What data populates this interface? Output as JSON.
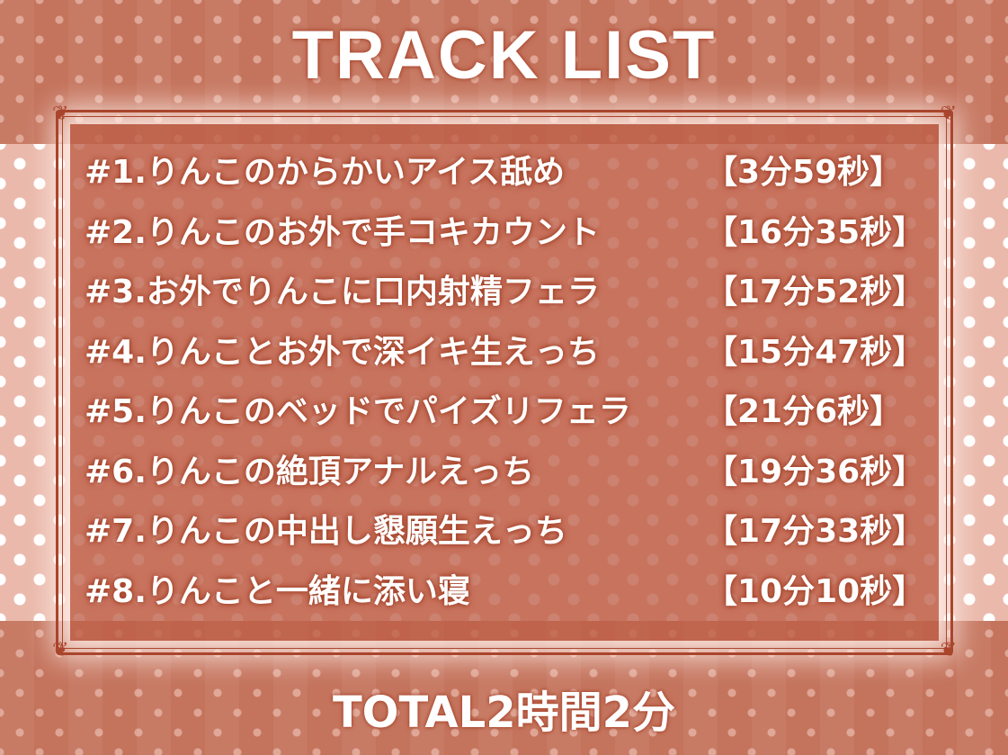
{
  "title": "TRACK LIST",
  "tracks": [
    {
      "name": "#1.りんこのからかいアイス舐め",
      "duration": "【3分59秒】"
    },
    {
      "name": "#2.りんこのお外で手コキカウント",
      "duration": "【16分35秒】"
    },
    {
      "name": "#3.お外でりんこに口内射精フェラ",
      "duration": "【17分52秒】"
    },
    {
      "name": "#4.りんことお外で深イキ生えっち",
      "duration": "【15分47秒】"
    },
    {
      "name": "#5.りんこのベッドでパイズリフェラ",
      "duration": "【21分6秒】"
    },
    {
      "name": "#6.りんこの絶頂アナルえっち",
      "duration": "【19分36秒】"
    },
    {
      "name": "#7.りんこの中出し懇願生えっち",
      "duration": "【17分33秒】"
    },
    {
      "name": "#8.りんこと一緒に添い寝",
      "duration": "【10分10秒】"
    }
  ],
  "total": "TOTAL2時間2分",
  "colors": {
    "background": "#c4735c",
    "band": "#eab9ab",
    "frame": "#a9452c",
    "text": "#ffffff"
  }
}
